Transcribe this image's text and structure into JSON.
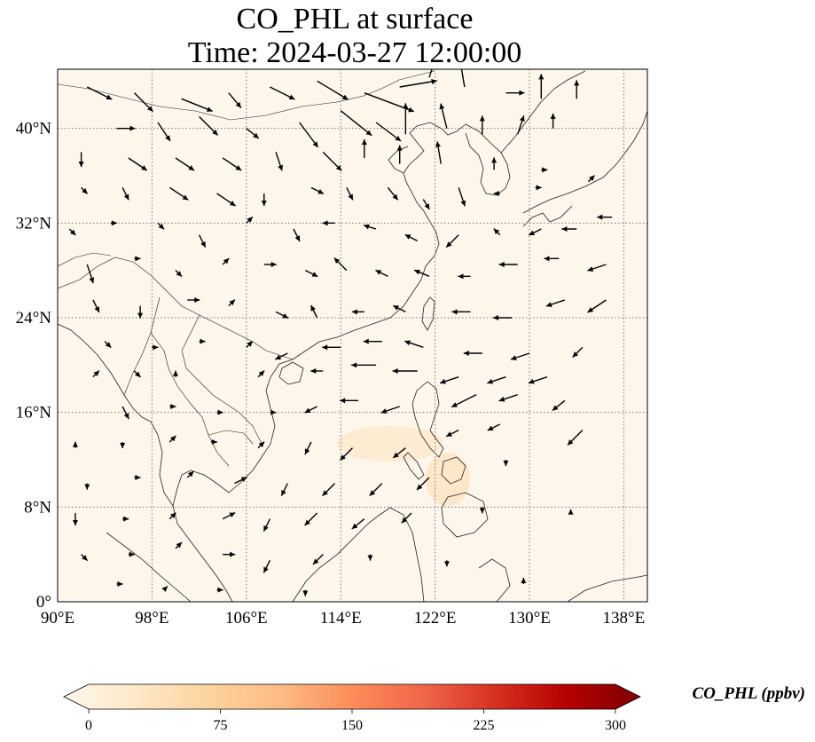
{
  "title": {
    "line1": "CO_PHL at surface",
    "line2": "Time: 2024-03-27 12:00:00"
  },
  "map": {
    "projection": "PlateCarree",
    "lon_range": [
      90,
      140
    ],
    "lat_range": [
      0,
      45
    ],
    "gridlines": "dotted",
    "lon_ticks": [
      {
        "value": 90,
        "label": "90°E"
      },
      {
        "value": 98,
        "label": "98°E"
      },
      {
        "value": 106,
        "label": "106°E"
      },
      {
        "value": 114,
        "label": "114°E"
      },
      {
        "value": 122,
        "label": "122°E"
      },
      {
        "value": 130,
        "label": "130°E"
      },
      {
        "value": 138,
        "label": "138°E"
      }
    ],
    "lat_ticks": [
      {
        "value": 0,
        "label": "0°"
      },
      {
        "value": 8,
        "label": "8°N"
      },
      {
        "value": 16,
        "label": "16°N"
      },
      {
        "value": 24,
        "label": "24°N"
      },
      {
        "value": 32,
        "label": "32°N"
      },
      {
        "value": 40,
        "label": "40°N"
      }
    ],
    "background_color": "#fdf6ea",
    "coastline_color": "#222222"
  },
  "colorbar": {
    "label": "CO_PHL (ppbv)",
    "min": 0,
    "max": 300,
    "extend": "both",
    "colormap": "OrRd",
    "colors": [
      "#fff7ec",
      "#fee8c8",
      "#fdd49e",
      "#fdbb84",
      "#fc8d59",
      "#ef6548",
      "#d7301f",
      "#b30000",
      "#7f0000"
    ],
    "ticks": [
      {
        "value": 0,
        "label": "0"
      },
      {
        "value": 75,
        "label": "75"
      },
      {
        "value": 150,
        "label": "150"
      },
      {
        "value": 225,
        "label": "225"
      },
      {
        "value": 300,
        "label": "300"
      }
    ]
  },
  "wind_vectors": [
    {
      "lon": 92.5,
      "lat": 43.5,
      "u": 2.0,
      "v": -1.0
    },
    {
      "lon": 96.5,
      "lat": 43.0,
      "u": 1.5,
      "v": -1.5
    },
    {
      "lon": 100.5,
      "lat": 42.5,
      "u": 2.5,
      "v": -1.0
    },
    {
      "lon": 104.5,
      "lat": 43.0,
      "u": 1.0,
      "v": -1.2
    },
    {
      "lon": 108.0,
      "lat": 43.5,
      "u": 2.0,
      "v": -1.0
    },
    {
      "lon": 112.0,
      "lat": 44.0,
      "u": 2.5,
      "v": -1.5
    },
    {
      "lon": 116.0,
      "lat": 43.0,
      "u": 4.0,
      "v": -1.5
    },
    {
      "lon": 119.0,
      "lat": 43.5,
      "u": 3.0,
      "v": 0.5
    },
    {
      "lon": 121.5,
      "lat": 44.3,
      "u": 1.0,
      "v": 3.0
    },
    {
      "lon": 124.5,
      "lat": 43.5,
      "u": -0.5,
      "v": 3.0
    },
    {
      "lon": 128.0,
      "lat": 43.0,
      "u": 1.5,
      "v": 0.0
    },
    {
      "lon": 131.0,
      "lat": 42.5,
      "u": 0.0,
      "v": 2.0
    },
    {
      "lon": 134.0,
      "lat": 42.5,
      "u": 0.0,
      "v": 1.5
    },
    {
      "lon": 95.0,
      "lat": 40.0,
      "u": 1.5,
      "v": 0.0
    },
    {
      "lon": 98.5,
      "lat": 40.5,
      "u": 1.0,
      "v": -1.5
    },
    {
      "lon": 102.0,
      "lat": 41.0,
      "u": 1.5,
      "v": -1.5
    },
    {
      "lon": 106.0,
      "lat": 40.0,
      "u": 1.0,
      "v": -0.8
    },
    {
      "lon": 110.5,
      "lat": 40.5,
      "u": 1.5,
      "v": -2.0
    },
    {
      "lon": 114.0,
      "lat": 41.5,
      "u": 2.5,
      "v": -2.0
    },
    {
      "lon": 117.0,
      "lat": 40.5,
      "u": 2.0,
      "v": -1.5
    },
    {
      "lon": 119.5,
      "lat": 39.5,
      "u": 0.0,
      "v": 2.5
    },
    {
      "lon": 123.0,
      "lat": 40.0,
      "u": -0.5,
      "v": 2.0
    },
    {
      "lon": 126.0,
      "lat": 39.5,
      "u": 0.0,
      "v": 1.5
    },
    {
      "lon": 129.0,
      "lat": 39.5,
      "u": 0.5,
      "v": 1.5
    },
    {
      "lon": 132.0,
      "lat": 40.0,
      "u": 0.0,
      "v": 1.2
    },
    {
      "lon": 92.0,
      "lat": 38.0,
      "u": 0.0,
      "v": -1.2
    },
    {
      "lon": 96.0,
      "lat": 37.5,
      "u": 1.5,
      "v": -1.0
    },
    {
      "lon": 100.0,
      "lat": 37.5,
      "u": 1.5,
      "v": -1.0
    },
    {
      "lon": 104.0,
      "lat": 37.5,
      "u": 1.5,
      "v": -1.0
    },
    {
      "lon": 108.5,
      "lat": 38.0,
      "u": 0.5,
      "v": -1.5
    },
    {
      "lon": 112.5,
      "lat": 38.0,
      "u": 1.5,
      "v": -1.5
    },
    {
      "lon": 116.0,
      "lat": 37.5,
      "u": 0.0,
      "v": 1.5
    },
    {
      "lon": 119.0,
      "lat": 37.0,
      "u": 0.0,
      "v": 1.5
    },
    {
      "lon": 122.5,
      "lat": 37.0,
      "u": -0.3,
      "v": 1.8
    },
    {
      "lon": 127.0,
      "lat": 36.5,
      "u": 0.0,
      "v": 1.0
    },
    {
      "lon": 131.0,
      "lat": 36.5,
      "u": 0.5,
      "v": 0.0
    },
    {
      "lon": 92.0,
      "lat": 35.0,
      "u": 0.5,
      "v": -0.5
    },
    {
      "lon": 95.5,
      "lat": 35.0,
      "u": 0.5,
      "v": -1.0
    },
    {
      "lon": 99.5,
      "lat": 35.0,
      "u": 1.5,
      "v": -1.0
    },
    {
      "lon": 103.5,
      "lat": 34.5,
      "u": 1.5,
      "v": -1.0
    },
    {
      "lon": 107.5,
      "lat": 34.5,
      "u": 0.0,
      "v": -1.0
    },
    {
      "lon": 111.5,
      "lat": 35.0,
      "u": 1.0,
      "v": -0.5
    },
    {
      "lon": 114.5,
      "lat": 35.0,
      "u": 0.5,
      "v": -1.0
    },
    {
      "lon": 118.0,
      "lat": 35.0,
      "u": 0.8,
      "v": -1.0
    },
    {
      "lon": 121.0,
      "lat": 34.0,
      "u": 0.5,
      "v": -0.8
    },
    {
      "lon": 124.0,
      "lat": 35.0,
      "u": 0.5,
      "v": -1.5
    },
    {
      "lon": 127.5,
      "lat": 34.5,
      "u": -0.5,
      "v": 0.0
    },
    {
      "lon": 130.5,
      "lat": 35.0,
      "u": 0.5,
      "v": 0.0
    },
    {
      "lon": 135.0,
      "lat": 35.5,
      "u": 0.5,
      "v": 0.5
    },
    {
      "lon": 91.0,
      "lat": 31.5,
      "u": 0.5,
      "v": -0.5
    },
    {
      "lon": 94.5,
      "lat": 32.0,
      "u": 0.5,
      "v": 0.0
    },
    {
      "lon": 98.5,
      "lat": 32.0,
      "u": 0.5,
      "v": -0.5
    },
    {
      "lon": 102.0,
      "lat": 31.0,
      "u": 0.5,
      "v": -1.0
    },
    {
      "lon": 106.0,
      "lat": 32.0,
      "u": 0.5,
      "v": 0.5
    },
    {
      "lon": 110.0,
      "lat": 31.5,
      "u": 0.5,
      "v": -1.0
    },
    {
      "lon": 113.5,
      "lat": 32.0,
      "u": -1.0,
      "v": 0.0
    },
    {
      "lon": 117.0,
      "lat": 31.5,
      "u": -1.0,
      "v": 0.3
    },
    {
      "lon": 120.5,
      "lat": 30.5,
      "u": -1.0,
      "v": 0.5
    },
    {
      "lon": 124.0,
      "lat": 31.0,
      "u": -1.0,
      "v": -1.0
    },
    {
      "lon": 127.5,
      "lat": 31.0,
      "u": -0.5,
      "v": 0.5
    },
    {
      "lon": 131.0,
      "lat": 31.5,
      "u": -1.0,
      "v": -0.5
    },
    {
      "lon": 134.0,
      "lat": 31.5,
      "u": -1.2,
      "v": 0.0
    },
    {
      "lon": 137.0,
      "lat": 32.5,
      "u": -1.2,
      "v": 0.0
    },
    {
      "lon": 92.5,
      "lat": 28.5,
      "u": 0.5,
      "v": -1.5
    },
    {
      "lon": 96.5,
      "lat": 29.0,
      "u": 0.5,
      "v": 0.0
    },
    {
      "lon": 100.0,
      "lat": 28.0,
      "u": 0.5,
      "v": -0.5
    },
    {
      "lon": 104.0,
      "lat": 28.5,
      "u": 0.5,
      "v": 0.5
    },
    {
      "lon": 107.5,
      "lat": 28.5,
      "u": 1.0,
      "v": 0.0
    },
    {
      "lon": 111.0,
      "lat": 28.0,
      "u": 1.0,
      "v": -0.5
    },
    {
      "lon": 114.5,
      "lat": 28.0,
      "u": -1.0,
      "v": 1.0
    },
    {
      "lon": 118.0,
      "lat": 27.5,
      "u": -1.0,
      "v": 0.5
    },
    {
      "lon": 121.5,
      "lat": 27.5,
      "u": -1.2,
      "v": 0.5
    },
    {
      "lon": 125.0,
      "lat": 27.5,
      "u": -1.0,
      "v": 0.0
    },
    {
      "lon": 129.0,
      "lat": 28.5,
      "u": -1.5,
      "v": 0.0
    },
    {
      "lon": 132.5,
      "lat": 29.0,
      "u": -1.2,
      "v": 0.0
    },
    {
      "lon": 136.5,
      "lat": 28.5,
      "u": -1.5,
      "v": -0.5
    },
    {
      "lon": 93.0,
      "lat": 25.5,
      "u": 0.5,
      "v": -1.0
    },
    {
      "lon": 97.0,
      "lat": 25.0,
      "u": 0.0,
      "v": -1.0
    },
    {
      "lon": 101.0,
      "lat": 25.5,
      "u": 1.0,
      "v": 0.0
    },
    {
      "lon": 104.5,
      "lat": 25.0,
      "u": 0.5,
      "v": 0.5
    },
    {
      "lon": 108.5,
      "lat": 24.5,
      "u": 1.0,
      "v": -0.5
    },
    {
      "lon": 112.0,
      "lat": 24.0,
      "u": -0.5,
      "v": 1.0
    },
    {
      "lon": 116.0,
      "lat": 24.5,
      "u": -1.0,
      "v": 0.0
    },
    {
      "lon": 119.5,
      "lat": 24.5,
      "u": -1.0,
      "v": 0.5
    },
    {
      "lon": 125.0,
      "lat": 24.5,
      "u": -1.5,
      "v": 0.0
    },
    {
      "lon": 128.5,
      "lat": 24.0,
      "u": -1.5,
      "v": 0.0
    },
    {
      "lon": 133.0,
      "lat": 25.5,
      "u": -1.5,
      "v": -0.5
    },
    {
      "lon": 136.5,
      "lat": 25.5,
      "u": -1.5,
      "v": -1.0
    },
    {
      "lon": 94.0,
      "lat": 22.0,
      "u": 0.5,
      "v": -0.5
    },
    {
      "lon": 98.0,
      "lat": 21.5,
      "u": 0.5,
      "v": 0.0
    },
    {
      "lon": 102.0,
      "lat": 22.0,
      "u": 0.5,
      "v": 0.0
    },
    {
      "lon": 106.0,
      "lat": 21.5,
      "u": 0.5,
      "v": 0.5
    },
    {
      "lon": 109.5,
      "lat": 21.0,
      "u": -1.0,
      "v": -0.5
    },
    {
      "lon": 114.0,
      "lat": 21.5,
      "u": -1.5,
      "v": 0.0
    },
    {
      "lon": 117.5,
      "lat": 22.0,
      "u": -1.5,
      "v": 0.0
    },
    {
      "lon": 121.0,
      "lat": 21.5,
      "u": -1.5,
      "v": 0.5
    },
    {
      "lon": 126.0,
      "lat": 21.0,
      "u": -1.5,
      "v": 0.0
    },
    {
      "lon": 130.0,
      "lat": 21.0,
      "u": -1.5,
      "v": -0.5
    },
    {
      "lon": 134.5,
      "lat": 21.5,
      "u": -0.8,
      "v": -0.8
    },
    {
      "lon": 93.0,
      "lat": 19.0,
      "u": 0.5,
      "v": 0.5
    },
    {
      "lon": 96.5,
      "lat": 19.5,
      "u": 0.5,
      "v": -0.5
    },
    {
      "lon": 100.0,
      "lat": 19.0,
      "u": 0.0,
      "v": 0.5
    },
    {
      "lon": 107.0,
      "lat": 19.0,
      "u": 0.5,
      "v": 0.5
    },
    {
      "lon": 112.5,
      "lat": 19.5,
      "u": -1.0,
      "v": 0.0
    },
    {
      "lon": 117.0,
      "lat": 20.0,
      "u": -2.0,
      "v": 0.0
    },
    {
      "lon": 120.5,
      "lat": 19.5,
      "u": -2.0,
      "v": 0.0
    },
    {
      "lon": 124.0,
      "lat": 19.0,
      "u": -1.5,
      "v": -0.5
    },
    {
      "lon": 128.0,
      "lat": 19.0,
      "u": -1.5,
      "v": -0.5
    },
    {
      "lon": 131.5,
      "lat": 19.0,
      "u": -1.5,
      "v": -0.5
    },
    {
      "lon": 95.5,
      "lat": 16.5,
      "u": 0.5,
      "v": -1.0
    },
    {
      "lon": 99.5,
      "lat": 16.5,
      "u": 0.5,
      "v": 0.0
    },
    {
      "lon": 103.5,
      "lat": 16.0,
      "u": 0.5,
      "v": 0.0
    },
    {
      "lon": 108.0,
      "lat": 16.0,
      "u": 0.5,
      "v": 0.0
    },
    {
      "lon": 112.0,
      "lat": 16.5,
      "u": -1.0,
      "v": -0.5
    },
    {
      "lon": 115.5,
      "lat": 17.0,
      "u": -1.5,
      "v": 0.0
    },
    {
      "lon": 119.0,
      "lat": 16.5,
      "u": -1.5,
      "v": -0.5
    },
    {
      "lon": 125.5,
      "lat": 17.5,
      "u": -2.0,
      "v": -1.0
    },
    {
      "lon": 129.0,
      "lat": 17.5,
      "u": -1.5,
      "v": -0.5
    },
    {
      "lon": 133.0,
      "lat": 17.0,
      "u": -1.0,
      "v": -0.8
    },
    {
      "lon": 91.5,
      "lat": 13.0,
      "u": 0.0,
      "v": 0.5
    },
    {
      "lon": 95.5,
      "lat": 13.5,
      "u": 0.0,
      "v": -0.5
    },
    {
      "lon": 99.5,
      "lat": 13.5,
      "u": 0.5,
      "v": 0.5
    },
    {
      "lon": 103.0,
      "lat": 13.5,
      "u": 0.5,
      "v": 0.0
    },
    {
      "lon": 107.0,
      "lat": 13.0,
      "u": 0.5,
      "v": 0.5
    },
    {
      "lon": 111.5,
      "lat": 13.5,
      "u": -0.5,
      "v": -1.0
    },
    {
      "lon": 115.0,
      "lat": 13.0,
      "u": -1.0,
      "v": -1.0
    },
    {
      "lon": 119.5,
      "lat": 13.0,
      "u": -1.0,
      "v": -0.8
    },
    {
      "lon": 124.0,
      "lat": 14.5,
      "u": -1.0,
      "v": -0.5
    },
    {
      "lon": 127.5,
      "lat": 15.0,
      "u": -1.0,
      "v": -0.5
    },
    {
      "lon": 134.5,
      "lat": 14.5,
      "u": -1.2,
      "v": -1.2
    },
    {
      "lon": 92.5,
      "lat": 10.0,
      "u": 0.0,
      "v": -0.5
    },
    {
      "lon": 96.5,
      "lat": 10.5,
      "u": 0.5,
      "v": 0.0
    },
    {
      "lon": 101.0,
      "lat": 10.5,
      "u": 0.5,
      "v": 0.5
    },
    {
      "lon": 105.0,
      "lat": 10.0,
      "u": 1.0,
      "v": 0.5
    },
    {
      "lon": 109.5,
      "lat": 10.0,
      "u": -0.5,
      "v": -1.0
    },
    {
      "lon": 113.5,
      "lat": 10.0,
      "u": -1.0,
      "v": -1.0
    },
    {
      "lon": 117.5,
      "lat": 10.0,
      "u": -1.0,
      "v": -1.0
    },
    {
      "lon": 121.5,
      "lat": 10.5,
      "u": -1.0,
      "v": -1.0
    },
    {
      "lon": 128.0,
      "lat": 12.0,
      "u": 0.0,
      "v": -0.5
    },
    {
      "lon": 91.5,
      "lat": 7.5,
      "u": 0.0,
      "v": -1.0
    },
    {
      "lon": 95.5,
      "lat": 7.0,
      "u": 0.5,
      "v": 0.0
    },
    {
      "lon": 99.5,
      "lat": 7.0,
      "u": 0.5,
      "v": 0.5
    },
    {
      "lon": 104.0,
      "lat": 7.0,
      "u": 1.0,
      "v": 0.5
    },
    {
      "lon": 108.0,
      "lat": 7.0,
      "u": -0.5,
      "v": -1.0
    },
    {
      "lon": 112.0,
      "lat": 7.5,
      "u": -1.0,
      "v": -1.0
    },
    {
      "lon": 116.0,
      "lat": 7.0,
      "u": -1.0,
      "v": -0.8
    },
    {
      "lon": 120.0,
      "lat": 7.5,
      "u": -0.8,
      "v": -0.8
    },
    {
      "lon": 126.0,
      "lat": 8.0,
      "u": 0.0,
      "v": -0.5
    },
    {
      "lon": 133.5,
      "lat": 7.5,
      "u": 0.0,
      "v": 0.3
    },
    {
      "lon": 92.0,
      "lat": 4.0,
      "u": 0.5,
      "v": -0.5
    },
    {
      "lon": 96.0,
      "lat": 4.0,
      "u": 0.5,
      "v": 0.0
    },
    {
      "lon": 100.0,
      "lat": 4.5,
      "u": 0.5,
      "v": 0.5
    },
    {
      "lon": 104.0,
      "lat": 4.0,
      "u": 1.0,
      "v": 0.0
    },
    {
      "lon": 108.0,
      "lat": 3.5,
      "u": -0.5,
      "v": -1.0
    },
    {
      "lon": 112.5,
      "lat": 4.0,
      "u": -0.8,
      "v": -0.8
    },
    {
      "lon": 116.5,
      "lat": 4.0,
      "u": 0.0,
      "v": -0.5
    },
    {
      "lon": 123.0,
      "lat": 3.5,
      "u": 0.0,
      "v": -0.5
    },
    {
      "lon": 129.5,
      "lat": 1.5,
      "u": 0.0,
      "v": 0.5
    },
    {
      "lon": 95.0,
      "lat": 1.5,
      "u": 0.5,
      "v": 0.0
    },
    {
      "lon": 99.0,
      "lat": 1.0,
      "u": 0.3,
      "v": 0.3
    },
    {
      "lon": 103.5,
      "lat": 1.0,
      "u": 0.5,
      "v": 0.0
    },
    {
      "lon": 111.0,
      "lat": 1.0,
      "u": 0.0,
      "v": -0.5
    }
  ]
}
